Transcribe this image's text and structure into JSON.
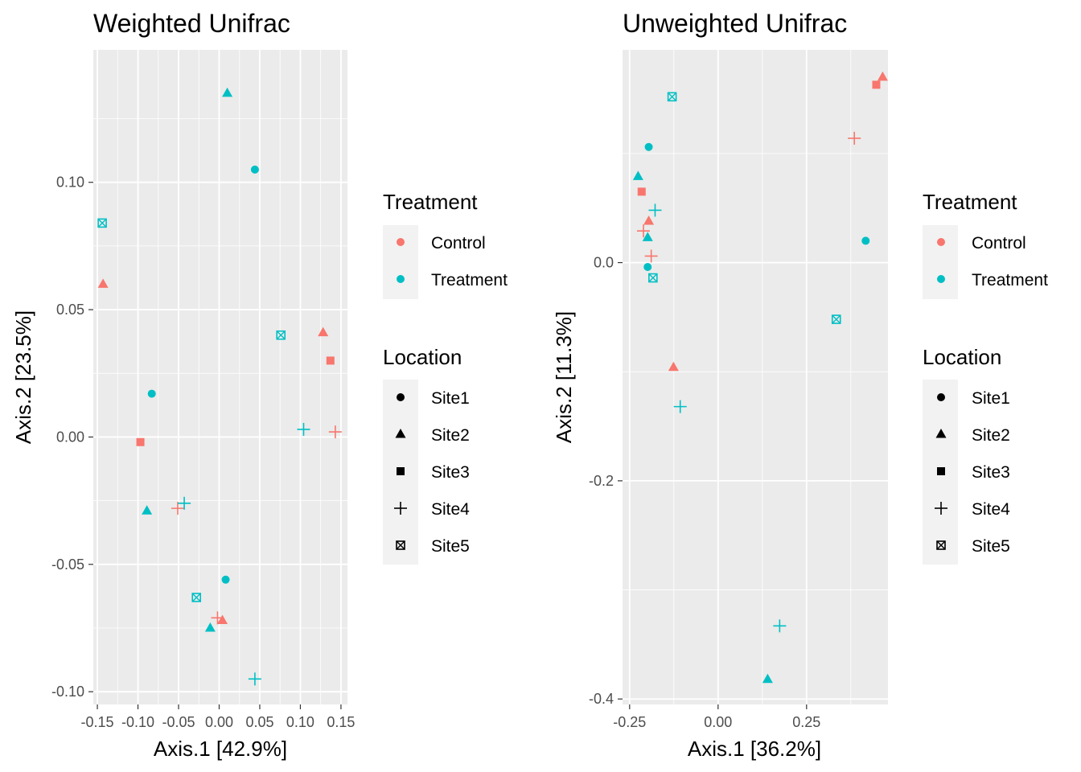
{
  "colors": {
    "Control": "#F8766D",
    "Treatment": "#00BFC4",
    "panel": "#EBEBEB",
    "grid": "#FFFFFF",
    "text": "#000000",
    "tick_text": "#4D4D4D",
    "legend_key_bg": "#F2F2F2"
  },
  "legends": {
    "treatment_title": "Treatment",
    "treatment_items": [
      "Control",
      "Treatment"
    ],
    "location_title": "Location",
    "location_items": [
      {
        "label": "Site1",
        "shape": "circle"
      },
      {
        "label": "Site2",
        "shape": "triangle"
      },
      {
        "label": "Site3",
        "shape": "square"
      },
      {
        "label": "Site4",
        "shape": "plus"
      },
      {
        "label": "Site5",
        "shape": "square-cross"
      }
    ]
  },
  "chart_data": [
    {
      "type": "scatter",
      "title": "Weighted Unifrac",
      "xlabel": "Axis.1   [42.9%]",
      "ylabel": "Axis.2   [23.5%]",
      "xlim": [
        -0.155,
        0.158
      ],
      "ylim": [
        -0.105,
        0.152
      ],
      "xticks": [
        -0.15,
        -0.1,
        -0.05,
        0.0,
        0.05,
        0.1,
        0.15
      ],
      "xticklabels": [
        "-0.15",
        "-0.10",
        "-0.05",
        "0.00",
        "0.05",
        "0.10",
        "0.15"
      ],
      "yticks": [
        -0.1,
        -0.05,
        0.0,
        0.05,
        0.1
      ],
      "yticklabels": [
        "-0.10",
        "-0.05",
        "0.00",
        "0.05",
        "0.10"
      ],
      "points": [
        {
          "x": 0.01,
          "y": 0.135,
          "treatment": "Treatment",
          "location": "Site2"
        },
        {
          "x": 0.044,
          "y": 0.105,
          "treatment": "Treatment",
          "location": "Site1"
        },
        {
          "x": -0.144,
          "y": 0.084,
          "treatment": "Treatment",
          "location": "Site5"
        },
        {
          "x": -0.143,
          "y": 0.06,
          "treatment": "Control",
          "location": "Site2"
        },
        {
          "x": 0.076,
          "y": 0.04,
          "treatment": "Treatment",
          "location": "Site5"
        },
        {
          "x": 0.128,
          "y": 0.041,
          "treatment": "Control",
          "location": "Site2"
        },
        {
          "x": 0.137,
          "y": 0.03,
          "treatment": "Control",
          "location": "Site3"
        },
        {
          "x": -0.083,
          "y": 0.017,
          "treatment": "Treatment",
          "location": "Site1"
        },
        {
          "x": 0.104,
          "y": 0.003,
          "treatment": "Treatment",
          "location": "Site4"
        },
        {
          "x": 0.143,
          "y": 0.002,
          "treatment": "Control",
          "location": "Site4"
        },
        {
          "x": -0.097,
          "y": -0.002,
          "treatment": "Control",
          "location": "Site3"
        },
        {
          "x": -0.089,
          "y": -0.029,
          "treatment": "Treatment",
          "location": "Site2"
        },
        {
          "x": -0.051,
          "y": -0.028,
          "treatment": "Control",
          "location": "Site4"
        },
        {
          "x": -0.043,
          "y": -0.026,
          "treatment": "Treatment",
          "location": "Site4"
        },
        {
          "x": 0.008,
          "y": -0.056,
          "treatment": "Treatment",
          "location": "Site1"
        },
        {
          "x": -0.028,
          "y": -0.063,
          "treatment": "Treatment",
          "location": "Site5"
        },
        {
          "x": -0.002,
          "y": -0.071,
          "treatment": "Control",
          "location": "Site4"
        },
        {
          "x": 0.004,
          "y": -0.072,
          "treatment": "Control",
          "location": "Site2"
        },
        {
          "x": -0.011,
          "y": -0.075,
          "treatment": "Treatment",
          "location": "Site2"
        },
        {
          "x": 0.044,
          "y": -0.095,
          "treatment": "Treatment",
          "location": "Site4"
        }
      ]
    },
    {
      "type": "scatter",
      "title": "Unweighted Unifrac",
      "xlabel": "Axis.1   [36.2%]",
      "ylabel": "Axis.2   [11.3%]",
      "xlim": [
        -0.27,
        0.48
      ],
      "ylim": [
        -0.405,
        0.195
      ],
      "xticks": [
        -0.25,
        0.0,
        0.25
      ],
      "xticklabels": [
        "-0.25",
        "0.00",
        "0.25"
      ],
      "yticks": [
        -0.4,
        -0.2,
        0.0
      ],
      "yticklabels": [
        "-0.4",
        "-0.2",
        "0.0"
      ],
      "points": [
        {
          "x": 0.465,
          "y": 0.17,
          "treatment": "Control",
          "location": "Site2"
        },
        {
          "x": 0.447,
          "y": 0.163,
          "treatment": "Control",
          "location": "Site3"
        },
        {
          "x": -0.13,
          "y": 0.152,
          "treatment": "Treatment",
          "location": "Site5"
        },
        {
          "x": 0.385,
          "y": 0.114,
          "treatment": "Control",
          "location": "Site4"
        },
        {
          "x": -0.196,
          "y": 0.106,
          "treatment": "Treatment",
          "location": "Site1"
        },
        {
          "x": -0.226,
          "y": 0.079,
          "treatment": "Treatment",
          "location": "Site2"
        },
        {
          "x": -0.216,
          "y": 0.065,
          "treatment": "Control",
          "location": "Site3"
        },
        {
          "x": -0.178,
          "y": 0.048,
          "treatment": "Treatment",
          "location": "Site4"
        },
        {
          "x": -0.196,
          "y": 0.038,
          "treatment": "Control",
          "location": "Site2"
        },
        {
          "x": -0.211,
          "y": 0.029,
          "treatment": "Control",
          "location": "Site4"
        },
        {
          "x": -0.199,
          "y": 0.023,
          "treatment": "Treatment",
          "location": "Site2"
        },
        {
          "x": 0.417,
          "y": 0.02,
          "treatment": "Treatment",
          "location": "Site1"
        },
        {
          "x": -0.189,
          "y": 0.006,
          "treatment": "Control",
          "location": "Site4"
        },
        {
          "x": -0.199,
          "y": -0.004,
          "treatment": "Treatment",
          "location": "Site1"
        },
        {
          "x": -0.184,
          "y": -0.014,
          "treatment": "Treatment",
          "location": "Site5"
        },
        {
          "x": 0.334,
          "y": -0.052,
          "treatment": "Treatment",
          "location": "Site5"
        },
        {
          "x": -0.126,
          "y": -0.096,
          "treatment": "Control",
          "location": "Site2"
        },
        {
          "x": -0.107,
          "y": -0.132,
          "treatment": "Treatment",
          "location": "Site4"
        },
        {
          "x": 0.174,
          "y": -0.333,
          "treatment": "Treatment",
          "location": "Site4"
        },
        {
          "x": 0.14,
          "y": -0.382,
          "treatment": "Treatment",
          "location": "Site2"
        }
      ]
    }
  ]
}
